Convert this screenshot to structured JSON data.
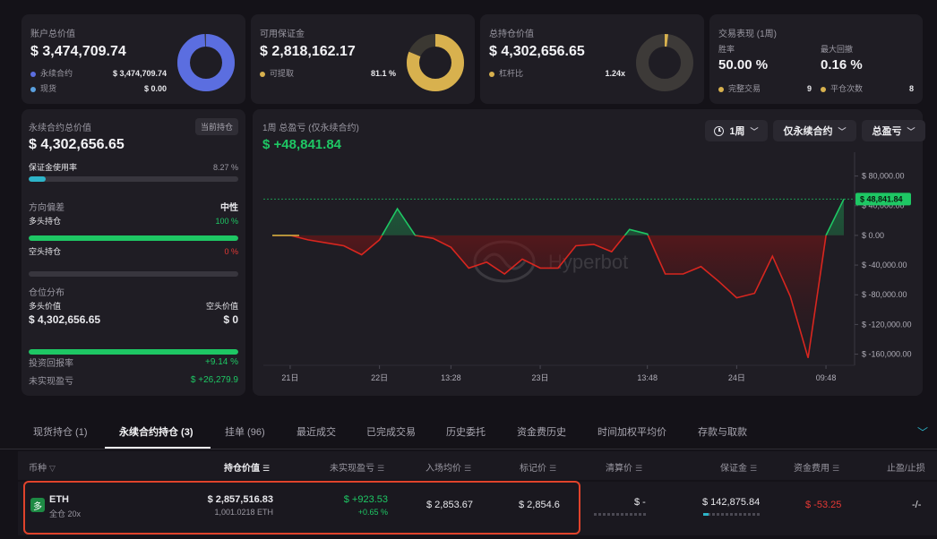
{
  "cards": {
    "account": {
      "title": "账户总价值",
      "value": "$ 3,474,709.74",
      "legend": [
        {
          "label": "永续合约",
          "value": "$ 3,474,709.74",
          "color": "#5b6ee0"
        },
        {
          "label": "现货",
          "value": "$ 0.00",
          "color": "#5aa0e0"
        }
      ],
      "donut_fraction": 0.99
    },
    "margin": {
      "title": "可用保证金",
      "value": "$ 2,818,162.17",
      "legend": [
        {
          "label": "可提取",
          "value": "81.1 %",
          "color": "#d8b14e"
        }
      ],
      "donut_fraction": 0.811
    },
    "position": {
      "title": "总持仓价值",
      "value": "$ 4,302,656.65",
      "legend": [
        {
          "label": "杠杆比",
          "value": "1.24x",
          "color": "#d8b14e"
        }
      ],
      "donut_fraction": 0.02
    },
    "performance": {
      "title": "交易表现 (1周)",
      "winrate_label": "胜率",
      "winrate_value": "50.00 %",
      "drawdown_label": "最大回撤",
      "drawdown_value": "0.16 %",
      "completed_label": "完整交易",
      "completed_value": "9",
      "closes_label": "平仓次数",
      "closes_value": "8"
    }
  },
  "perp": {
    "title": "永续合约总价值",
    "badge": "当前持仓",
    "value": "$ 4,302,656.65",
    "margin_usage_label": "保证金使用率",
    "margin_usage_value": "8.27 %",
    "margin_usage_fraction": 0.0827,
    "bias_label": "方向偏差",
    "bias_value": "中性",
    "long_label": "多头持仓",
    "long_value": "100 %",
    "long_fraction": 1.0,
    "short_label": "空头持仓",
    "short_value": "0 %",
    "short_fraction": 0.0,
    "dist_label": "仓位分布",
    "long_val_label": "多头价值",
    "short_val_label": "空头价值",
    "long_val": "$ 4,302,656.65",
    "short_val": "$ 0",
    "dist_fraction": 1.0,
    "roi_label": "投资回报率",
    "roi_value": "+9.14 %",
    "upnl_label": "未实现盈亏",
    "upnl_value": "$ +26,279.9"
  },
  "chart_header": {
    "title": "1周 总盈亏 (仅永续合约)",
    "value": "$ +48,841.84",
    "period_btn": "1周",
    "filter_btn": "仅永续合约",
    "metric_btn": "总盈亏",
    "watermark": "Hyperbot"
  },
  "chart_data": {
    "type": "line",
    "y_ticks": [
      80000,
      40000,
      0,
      -40000,
      -80000,
      -120000,
      -160000
    ],
    "y_tick_labels": [
      "$ 80,000.00",
      "$ 40,000.00",
      "$ 0.00",
      "$ -40,000.00",
      "$ -80,000.00",
      "$ -120,000.00",
      "$ -160,000.00"
    ],
    "ylim": [
      -175000,
      100000
    ],
    "current_label": "$ 48,841.84",
    "current_value": 48841.84,
    "x_tick_labels": [
      "21日",
      "22日",
      "13:28",
      "23日",
      "13:48",
      "24日",
      "09:48"
    ],
    "x_tick_index": [
      1,
      6,
      10,
      15,
      21,
      26,
      31
    ],
    "values": [
      0,
      0,
      -6000,
      -10000,
      -14000,
      -26000,
      -6000,
      36000,
      0,
      -4000,
      -16000,
      -44000,
      -36000,
      -52000,
      -32000,
      -44000,
      -44000,
      -14000,
      -12000,
      -22000,
      8000,
      2000,
      -52000,
      -52000,
      -42000,
      -62000,
      -84000,
      -78000,
      -28000,
      -82000,
      -165000,
      0,
      48841.84
    ]
  },
  "tabs": [
    "现货持仓 (1)",
    "永续合约持仓 (3)",
    "挂单 (96)",
    "最近成交",
    "已完成交易",
    "历史委托",
    "资金费历史",
    "时间加权平均价",
    "存款与取款"
  ],
  "active_tab": 1,
  "table": {
    "headers": [
      "币种",
      "持仓价值",
      "未实现盈亏",
      "入场均价",
      "标记价",
      "清算价",
      "保证金",
      "资金费用",
      "止盈/止损"
    ],
    "row": {
      "badge": "多",
      "coin": "ETH",
      "mode": "全仓 20x",
      "value": "$ 2,857,516.83",
      "size": "1,001.0218 ETH",
      "pnl": "$ +923.53",
      "pnl_pct": "+0.65 %",
      "entry": "$ 2,853.67",
      "mark": "$ 2,854.6",
      "liq": "$ -",
      "margin": "$ 142,875.84",
      "funding": "$ -53.25",
      "tpsl": "-/-"
    }
  }
}
